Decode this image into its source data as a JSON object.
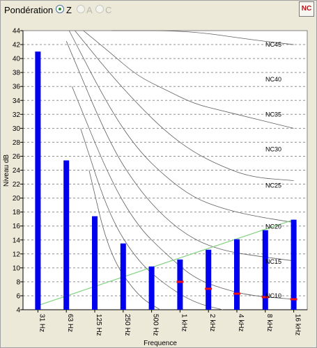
{
  "toolbar": {
    "ponderation_label": "Pondération",
    "options": [
      {
        "label": "Z",
        "selected": true,
        "enabled": true
      },
      {
        "label": "A",
        "selected": false,
        "enabled": false
      },
      {
        "label": "C",
        "selected": false,
        "enabled": false
      }
    ],
    "nc_button_label": "NC"
  },
  "chart_data": {
    "type": "bar",
    "xlabel": "Frequence",
    "ylabel": "Niveau dB",
    "ylim": [
      4,
      44
    ],
    "yticks": [
      4,
      6,
      8,
      10,
      12,
      14,
      16,
      18,
      20,
      22,
      24,
      26,
      28,
      30,
      32,
      34,
      36,
      38,
      40,
      42,
      44
    ],
    "grid": true,
    "categories": [
      "31 Hz",
      "63 Hz",
      "125 Hz",
      "250 Hz",
      "500 Hz",
      "1 kHz",
      "2 kHz",
      "4 kHz",
      "8 kHz",
      "16 kHz"
    ],
    "values": [
      41,
      25.4,
      17.4,
      13.5,
      10.2,
      11.2,
      12.6,
      14.1,
      15.4,
      16.9
    ],
    "bar_color": "#0000ee",
    "markers": {
      "color": "#ee1111",
      "points": [
        {
          "x": "1 kHz",
          "y": 8
        },
        {
          "x": "2 kHz",
          "y": 7
        },
        {
          "x": "4 kHz",
          "y": 6.3
        },
        {
          "x": "8 kHz",
          "y": 5.8
        },
        {
          "x": "16 kHz",
          "y": 5.5
        }
      ]
    },
    "trend_line": {
      "color": "#7fd27f",
      "from": {
        "x": "31 Hz",
        "y": 4.6
      },
      "to": {
        "x": "16 kHz",
        "y": 16.9
      }
    },
    "nc_curves": [
      {
        "name": "NC45",
        "points": [
          [
            2.6,
            44
          ],
          [
            5.3,
            44
          ],
          [
            7.5,
            42.7
          ],
          [
            9.0,
            42
          ]
        ]
      },
      {
        "name": "NC40",
        "points": [
          [
            1.6,
            44
          ],
          [
            2.5,
            41
          ],
          [
            3.5,
            37.5
          ],
          [
            4.5,
            35.5
          ],
          [
            5.5,
            33.5
          ],
          [
            6.5,
            32.5
          ],
          [
            7.5,
            31.5
          ],
          [
            9.0,
            30
          ]
        ]
      },
      {
        "name": "NC35",
        "points": [
          [
            1.3,
            44
          ],
          [
            2.5,
            38
          ],
          [
            3.5,
            33.5
          ],
          [
            4.5,
            29.5
          ],
          [
            5.5,
            26.5
          ],
          [
            6.5,
            24.5
          ],
          [
            7.5,
            23
          ],
          [
            9.0,
            22.5
          ]
        ]
      },
      {
        "name": "NC30",
        "points": [
          [
            1.1,
            44
          ],
          [
            2.5,
            33
          ],
          [
            3.5,
            27
          ],
          [
            4.5,
            23
          ],
          [
            5.5,
            20
          ],
          [
            6.5,
            18.5
          ],
          [
            7.5,
            17.5
          ],
          [
            9.0,
            16.5
          ]
        ]
      },
      {
        "name": "NC25",
        "points": [
          [
            1.0,
            42.5
          ],
          [
            2.5,
            28
          ],
          [
            3.5,
            21.5
          ],
          [
            4.5,
            17
          ],
          [
            5.5,
            14
          ],
          [
            6.5,
            12.5
          ],
          [
            7.5,
            11.8
          ],
          [
            9.0,
            11
          ]
        ]
      },
      {
        "name": "NC20",
        "points": [
          [
            1.2,
            36
          ],
          [
            2.5,
            23
          ],
          [
            3.5,
            16
          ],
          [
            4.5,
            12
          ],
          [
            5.5,
            8.5
          ],
          [
            6.5,
            7
          ],
          [
            7.5,
            6
          ],
          [
            9.0,
            5.5
          ]
        ]
      },
      {
        "name": "NC15",
        "points": [
          [
            1.5,
            30
          ],
          [
            2.5,
            17.5
          ],
          [
            3.5,
            11
          ],
          [
            4.5,
            7.5
          ],
          [
            5.5,
            5
          ],
          [
            6.5,
            4
          ]
        ]
      },
      {
        "name": "NC10",
        "points": [
          [
            1.8,
            24
          ],
          [
            2.5,
            12
          ],
          [
            3.5,
            6
          ],
          [
            4.3,
            4
          ]
        ]
      }
    ],
    "nc_labels": [
      {
        "name": "NC45",
        "y": 42
      },
      {
        "name": "NC40",
        "y": 37
      },
      {
        "name": "NC35",
        "y": 32
      },
      {
        "name": "NC30",
        "y": 27
      },
      {
        "name": "NC25",
        "y": 21.8
      },
      {
        "name": "NC20",
        "y": 15.9
      },
      {
        "name": "NC15",
        "y": 10.9
      },
      {
        "name": "NC10",
        "y": 6
      }
    ]
  }
}
